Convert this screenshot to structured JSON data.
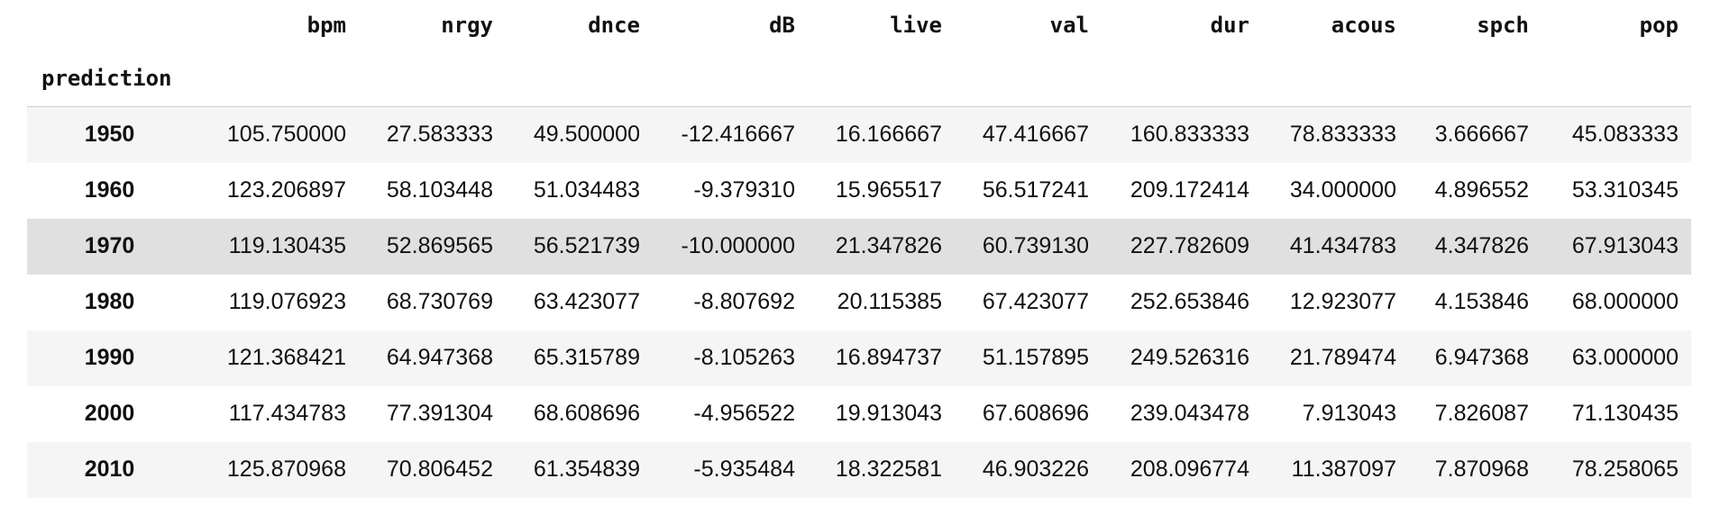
{
  "table": {
    "index_name": "prediction",
    "columns": [
      "bpm",
      "nrgy",
      "dnce",
      "dB",
      "live",
      "val",
      "dur",
      "acous",
      "spch",
      "pop"
    ],
    "rows": [
      {
        "index": "1950",
        "values": [
          "105.750000",
          "27.583333",
          "49.500000",
          "-12.416667",
          "16.166667",
          "47.416667",
          "160.833333",
          "78.833333",
          "3.666667",
          "45.083333"
        ]
      },
      {
        "index": "1960",
        "values": [
          "123.206897",
          "58.103448",
          "51.034483",
          "-9.379310",
          "15.965517",
          "56.517241",
          "209.172414",
          "34.000000",
          "4.896552",
          "53.310345"
        ]
      },
      {
        "index": "1970",
        "values": [
          "119.130435",
          "52.869565",
          "56.521739",
          "-10.000000",
          "21.347826",
          "60.739130",
          "227.782609",
          "41.434783",
          "4.347826",
          "67.913043"
        ]
      },
      {
        "index": "1980",
        "values": [
          "119.076923",
          "68.730769",
          "63.423077",
          "-8.807692",
          "20.115385",
          "67.423077",
          "252.653846",
          "12.923077",
          "4.153846",
          "68.000000"
        ]
      },
      {
        "index": "1990",
        "values": [
          "121.368421",
          "64.947368",
          "65.315789",
          "-8.105263",
          "16.894737",
          "51.157895",
          "249.526316",
          "21.789474",
          "6.947368",
          "63.000000"
        ]
      },
      {
        "index": "2000",
        "values": [
          "117.434783",
          "77.391304",
          "68.608696",
          "-4.956522",
          "19.913043",
          "67.608696",
          "239.043478",
          "7.913043",
          "7.826087",
          "71.130435"
        ]
      },
      {
        "index": "2010",
        "values": [
          "125.870968",
          "70.806452",
          "61.354839",
          "-5.935484",
          "18.322581",
          "46.903226",
          "208.096774",
          "11.387097",
          "7.870968",
          "78.258065"
        ]
      }
    ],
    "highlighted_row": "1970"
  }
}
